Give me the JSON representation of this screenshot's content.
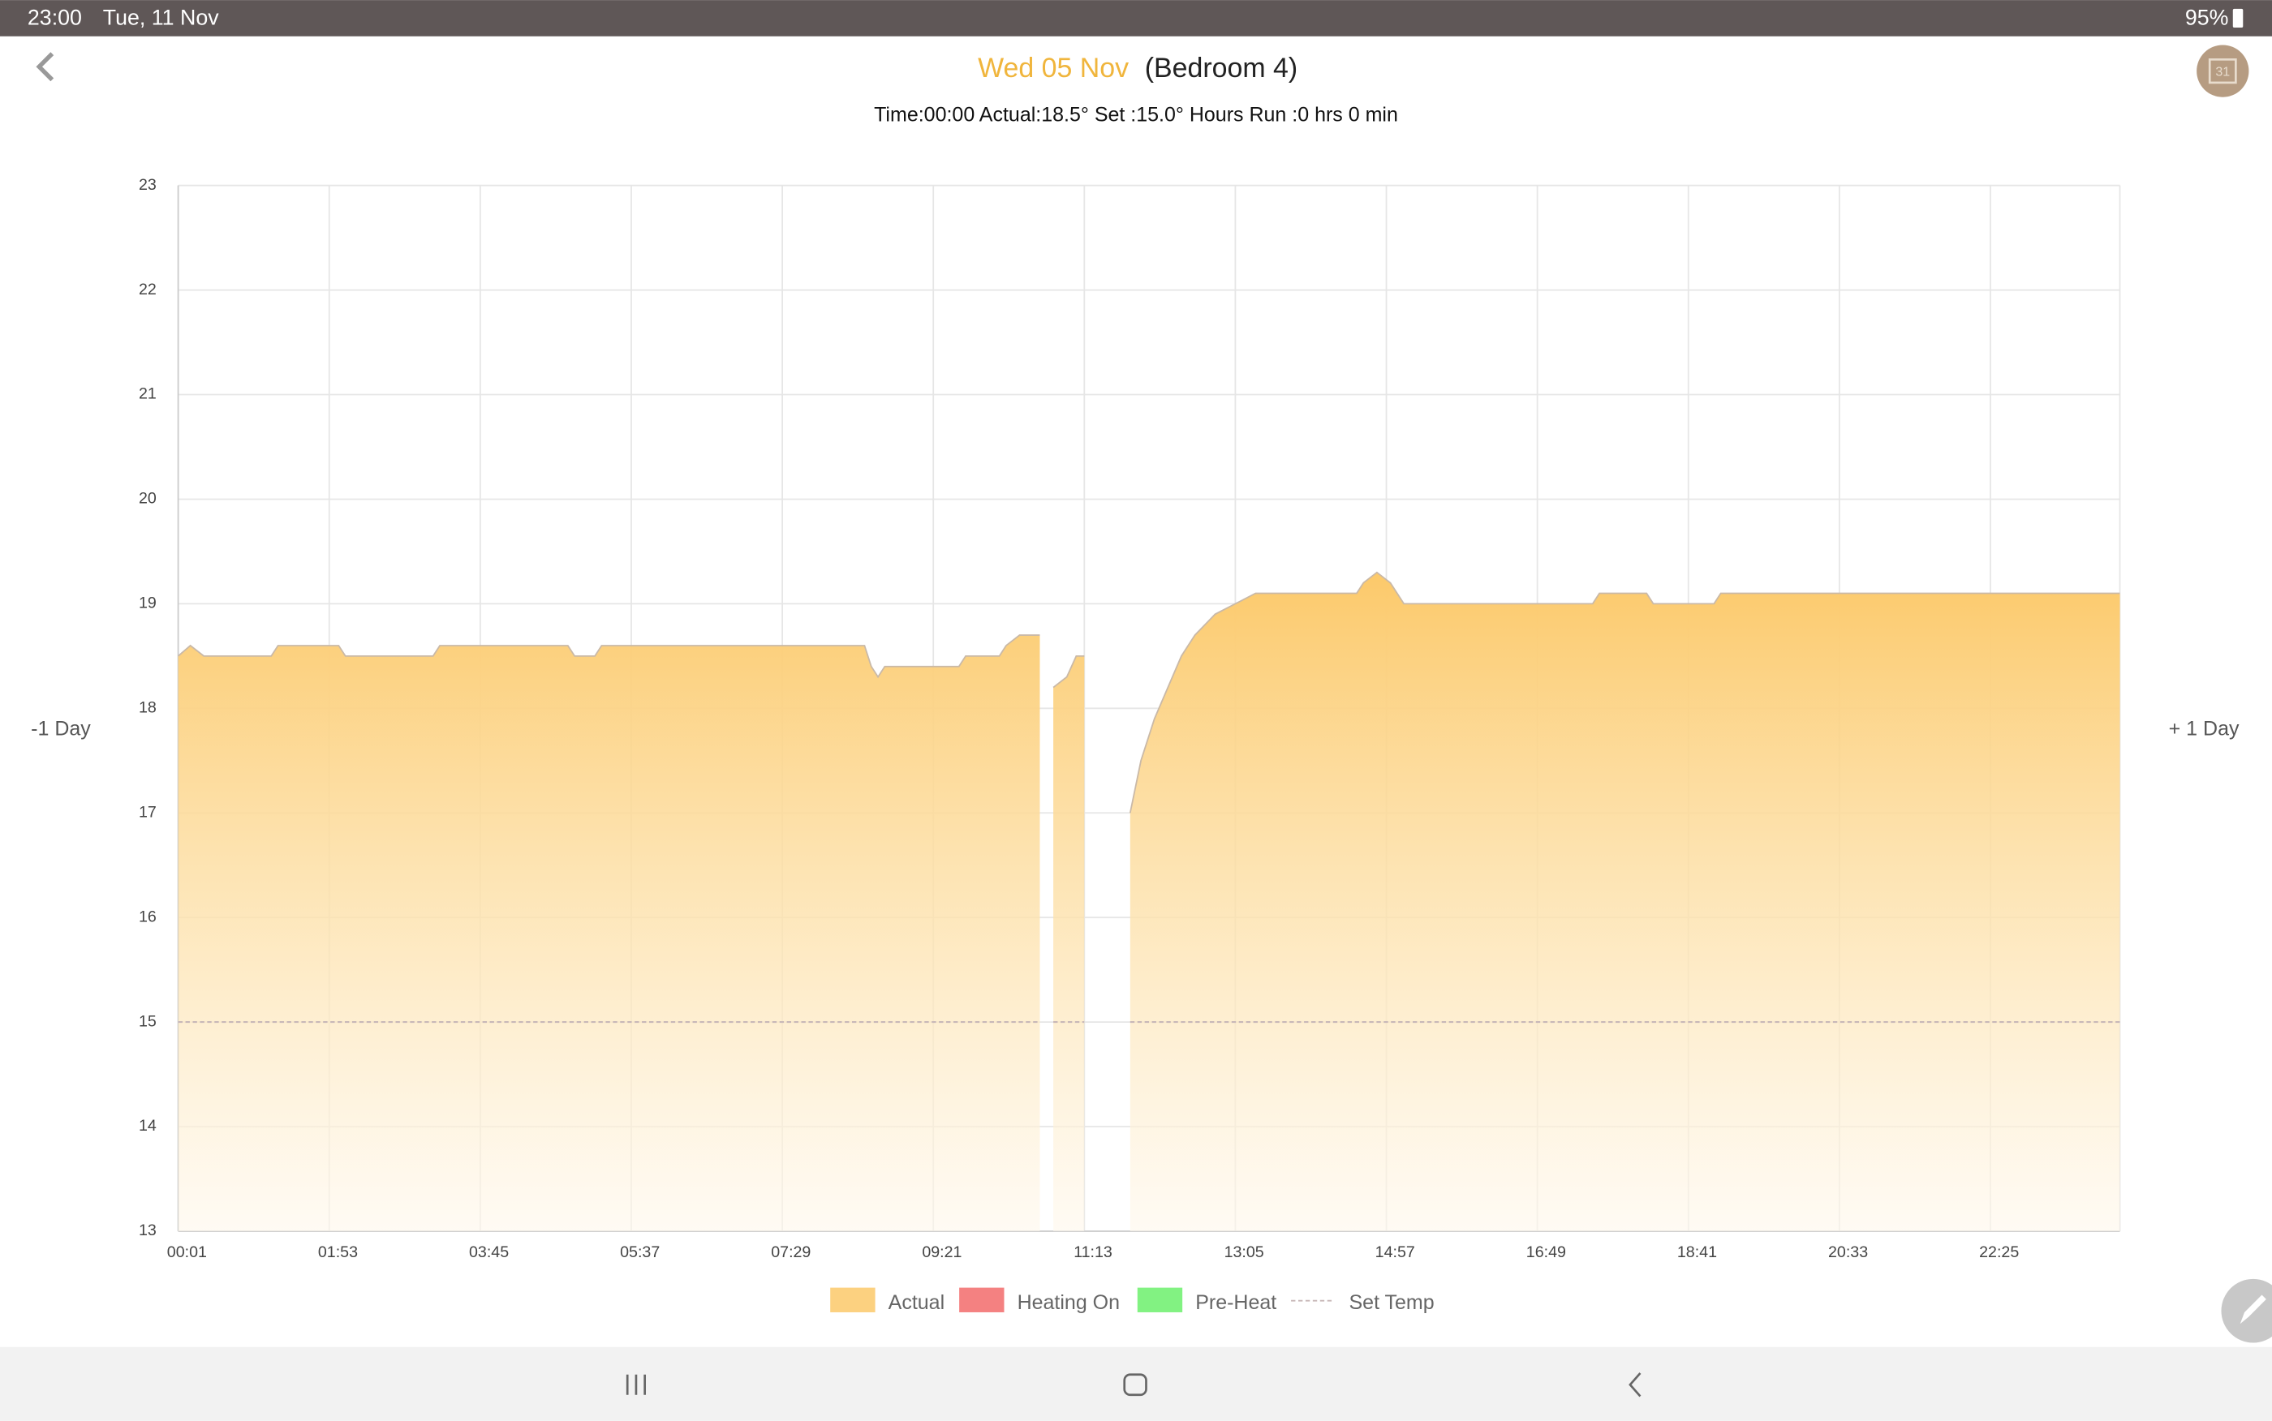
{
  "status_bar": {
    "time": "23:00",
    "date": "Tue, 11 Nov",
    "battery": "95%"
  },
  "header": {
    "date": "Wed 05 Nov",
    "room": "(Bedroom 4)",
    "info": "Time:00:00 Actual:18.5° Set :15.0° Hours Run :0 hrs 0 min",
    "calendar_day": "31"
  },
  "navigation": {
    "previous": "-1 Day",
    "next": "+ 1 Day"
  },
  "chart_data": {
    "type": "area",
    "xlim": [
      1,
      1441
    ],
    "xticks": [
      {
        "value": 1,
        "label": "00:01"
      },
      {
        "value": 113,
        "label": "01:53"
      },
      {
        "value": 225,
        "label": "03:45"
      },
      {
        "value": 337,
        "label": "05:37"
      },
      {
        "value": 449,
        "label": "07:29"
      },
      {
        "value": 561,
        "label": "09:21"
      },
      {
        "value": 673,
        "label": "11:13"
      },
      {
        "value": 785,
        "label": "13:05"
      },
      {
        "value": 897,
        "label": "14:57"
      },
      {
        "value": 1009,
        "label": "16:49"
      },
      {
        "value": 1121,
        "label": "18:41"
      },
      {
        "value": 1233,
        "label": "20:33"
      },
      {
        "value": 1345,
        "label": "22:25"
      }
    ],
    "ylim": [
      13,
      23
    ],
    "yticks": [
      13,
      14,
      15,
      16,
      17,
      18,
      19,
      20,
      21,
      22,
      23
    ],
    "grid": true,
    "series": [
      {
        "name": "Actual",
        "color": "#fcc96a",
        "x": [
          1,
          10,
          20,
          70,
          75,
          120,
          125,
          190,
          195,
          290,
          295,
          310,
          315,
          510,
          515,
          520,
          525,
          580,
          585,
          610,
          615,
          625,
          640,
          645,
          650,
          660,
          667,
          673,
          690,
          707,
          715,
          725,
          735,
          745,
          755,
          770,
          785,
          800,
          875,
          880,
          890,
          900,
          910,
          1050,
          1055,
          1090,
          1095,
          1140,
          1145,
          1441
        ],
        "values": [
          18.5,
          18.6,
          18.5,
          18.5,
          18.6,
          18.6,
          18.5,
          18.5,
          18.6,
          18.6,
          18.5,
          18.5,
          18.6,
          18.6,
          18.4,
          18.3,
          18.4,
          18.4,
          18.5,
          18.5,
          18.6,
          18.7,
          18.7,
          null,
          18.2,
          18.3,
          18.5,
          18.5,
          null,
          17.0,
          17.5,
          17.9,
          18.2,
          18.5,
          18.7,
          18.9,
          19.0,
          19.1,
          19.1,
          19.2,
          19.3,
          19.2,
          19.0,
          19.0,
          19.1,
          19.1,
          19.0,
          19.0,
          19.1,
          19.1
        ]
      },
      {
        "name": "Heating On",
        "color": "#f26b6b",
        "x": [],
        "values": []
      },
      {
        "name": "Pre-Heat",
        "color": "#6cf06c",
        "x": [],
        "values": []
      },
      {
        "name": "Set Temp",
        "color": "#c8b8b8",
        "x": [
          1,
          640,
          645,
          650,
          673,
          690,
          707,
          1441
        ],
        "values": [
          15,
          15,
          null,
          15,
          15,
          null,
          15,
          15
        ]
      }
    ]
  }
}
